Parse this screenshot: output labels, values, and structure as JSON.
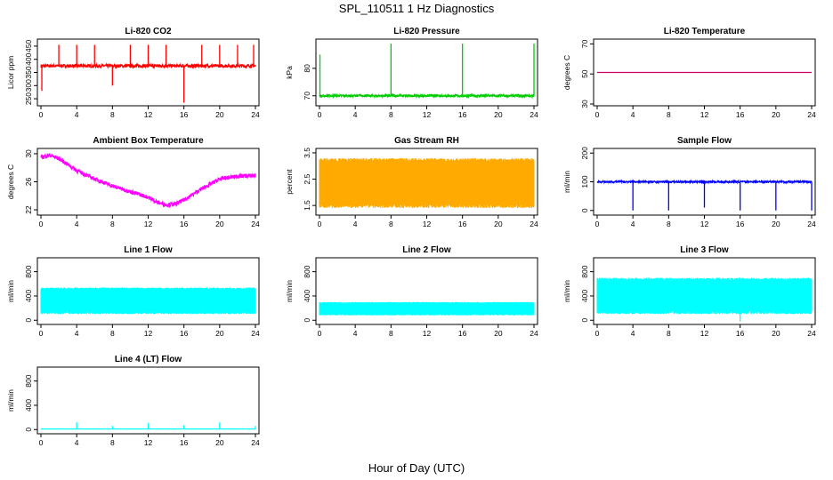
{
  "figure": {
    "title": "SPL_110511  1 Hz Diagnostics",
    "xlabel": "Hour of Day (UTC)"
  },
  "chart_data": [
    {
      "id": "co2",
      "type": "line",
      "title": "Li-820 CO2",
      "ylabel": "Licor ppm",
      "color": "#ff0000",
      "xlim": [
        0,
        24
      ],
      "xticks": [
        0,
        4,
        8,
        12,
        16,
        20,
        24
      ],
      "ylim": [
        230,
        470
      ],
      "yticks": [
        250,
        300,
        350,
        400,
        450
      ],
      "baseline": 375,
      "noise": 6,
      "spikes": [
        {
          "x": 0.1,
          "y": 280
        },
        {
          "x": 2.0,
          "y": 455
        },
        {
          "x": 4.0,
          "y": 455
        },
        {
          "x": 6.0,
          "y": 455
        },
        {
          "x": 8.0,
          "y": 300
        },
        {
          "x": 10.0,
          "y": 455
        },
        {
          "x": 12.0,
          "y": 455
        },
        {
          "x": 14.0,
          "y": 455
        },
        {
          "x": 16.0,
          "y": 235
        },
        {
          "x": 18.0,
          "y": 455
        },
        {
          "x": 20.0,
          "y": 455
        },
        {
          "x": 22.0,
          "y": 455
        },
        {
          "x": 23.8,
          "y": 455
        }
      ]
    },
    {
      "id": "pressure",
      "type": "line",
      "title": "Li-820 Pressure",
      "ylabel": "kPa",
      "color": "#00cc00",
      "xlim": [
        0,
        24
      ],
      "xticks": [
        0,
        4,
        8,
        12,
        16,
        20,
        24
      ],
      "ylim": [
        67,
        90
      ],
      "yticks": [
        70,
        80
      ],
      "baseline": 70,
      "noise": 0.4,
      "spikes": [
        {
          "x": 0.05,
          "y": 85
        },
        {
          "x": 8.0,
          "y": 89
        },
        {
          "x": 16.0,
          "y": 89
        },
        {
          "x": 24.0,
          "y": 89
        }
      ]
    },
    {
      "id": "licor-temp",
      "type": "line",
      "title": "Li-820 Temperature",
      "ylabel": "degrees C",
      "color": "#cc0066",
      "xlim": [
        0,
        24
      ],
      "xticks": [
        0,
        4,
        8,
        12,
        16,
        20,
        24
      ],
      "ylim": [
        30,
        72
      ],
      "yticks": [
        30,
        50,
        70
      ],
      "baseline": 51,
      "noise": 0,
      "spikes": []
    },
    {
      "id": "box-temp",
      "type": "line",
      "title": "Ambient Box Temperature",
      "ylabel": "degrees C",
      "color": "#ff00ff",
      "xlim": [
        0,
        24
      ],
      "xticks": [
        0,
        4,
        8,
        12,
        16,
        20,
        24
      ],
      "ylim": [
        21.5,
        30.5
      ],
      "yticks": [
        22,
        26,
        30
      ],
      "x": [
        0,
        1,
        2,
        3,
        4,
        6,
        8,
        10,
        12,
        13,
        14,
        15,
        16,
        18,
        20,
        22,
        24
      ],
      "y": [
        29.5,
        29.8,
        29.3,
        28.5,
        27.6,
        26.4,
        25.4,
        24.6,
        23.8,
        23.1,
        22.7,
        22.8,
        23.4,
        25.0,
        26.4,
        26.8,
        26.9
      ],
      "noise": 0.3,
      "spikes": []
    },
    {
      "id": "rh",
      "type": "line",
      "title": "Gas Stream RH",
      "ylabel": "percent",
      "color": "#ffaa00",
      "xlim": [
        0,
        24
      ],
      "xticks": [
        0,
        4,
        8,
        12,
        16,
        20,
        24
      ],
      "ylim": [
        1.2,
        3.6
      ],
      "yticks": [
        1.5,
        2.5,
        3.5
      ],
      "band": [
        1.4,
        3.3
      ],
      "spikes": []
    },
    {
      "id": "sample-flow",
      "type": "line",
      "title": "Sample Flow",
      "ylabel": "ml/min",
      "color": "#0000ff",
      "xlim": [
        0,
        24
      ],
      "xticks": [
        0,
        4,
        8,
        12,
        16,
        20,
        24
      ],
      "ylim": [
        -10,
        210
      ],
      "yticks": [
        0,
        100,
        200
      ],
      "baseline": 100,
      "noise": 3,
      "spikes": [
        {
          "x": 4.0,
          "y": 0
        },
        {
          "x": 8.0,
          "y": 0
        },
        {
          "x": 12.0,
          "y": 10
        },
        {
          "x": 16.0,
          "y": 0
        },
        {
          "x": 20.0,
          "y": 0
        },
        {
          "x": 24.0,
          "y": 0
        }
      ]
    },
    {
      "id": "line1",
      "type": "line",
      "title": "Line 1 Flow",
      "ylabel": "ml/min",
      "color": "#00ffff",
      "xlim": [
        0,
        24
      ],
      "xticks": [
        0,
        4,
        8,
        12,
        16,
        20,
        24
      ],
      "ylim": [
        -40,
        1000
      ],
      "yticks": [
        0,
        400,
        800
      ],
      "band": [
        100,
        540
      ],
      "spikes": []
    },
    {
      "id": "line2",
      "type": "line",
      "title": "Line 2 Flow",
      "ylabel": "ml/min",
      "color": "#00ffff",
      "xlim": [
        0,
        24
      ],
      "xticks": [
        0,
        4,
        8,
        12,
        16,
        20,
        24
      ],
      "ylim": [
        -40,
        1000
      ],
      "yticks": [
        0,
        400,
        800
      ],
      "band": [
        80,
        300
      ],
      "spikes": []
    },
    {
      "id": "line3",
      "type": "line",
      "title": "Line 3 Flow",
      "ylabel": "ml/min",
      "color": "#00ffff",
      "xlim": [
        0,
        24
      ],
      "xticks": [
        0,
        4,
        8,
        12,
        16,
        20,
        24
      ],
      "ylim": [
        -40,
        1000
      ],
      "yticks": [
        0,
        400,
        800
      ],
      "band": [
        100,
        700
      ],
      "spikes": [
        {
          "x": 16.0,
          "y": -20
        }
      ]
    },
    {
      "id": "line4",
      "type": "line",
      "title": "Line 4 (LT) Flow",
      "ylabel": "ml/min",
      "color": "#00ffff",
      "xlim": [
        0,
        24
      ],
      "xticks": [
        0,
        4,
        8,
        12,
        16,
        20,
        24
      ],
      "ylim": [
        -40,
        1000
      ],
      "yticks": [
        0,
        400,
        800
      ],
      "baseline": 10,
      "noise": 2,
      "spikes": [
        {
          "x": 4.0,
          "y": 120
        },
        {
          "x": 8.0,
          "y": 60
        },
        {
          "x": 12.0,
          "y": 110
        },
        {
          "x": 16.0,
          "y": 70
        },
        {
          "x": 20.0,
          "y": 120
        },
        {
          "x": 24.0,
          "y": 60
        }
      ]
    }
  ]
}
